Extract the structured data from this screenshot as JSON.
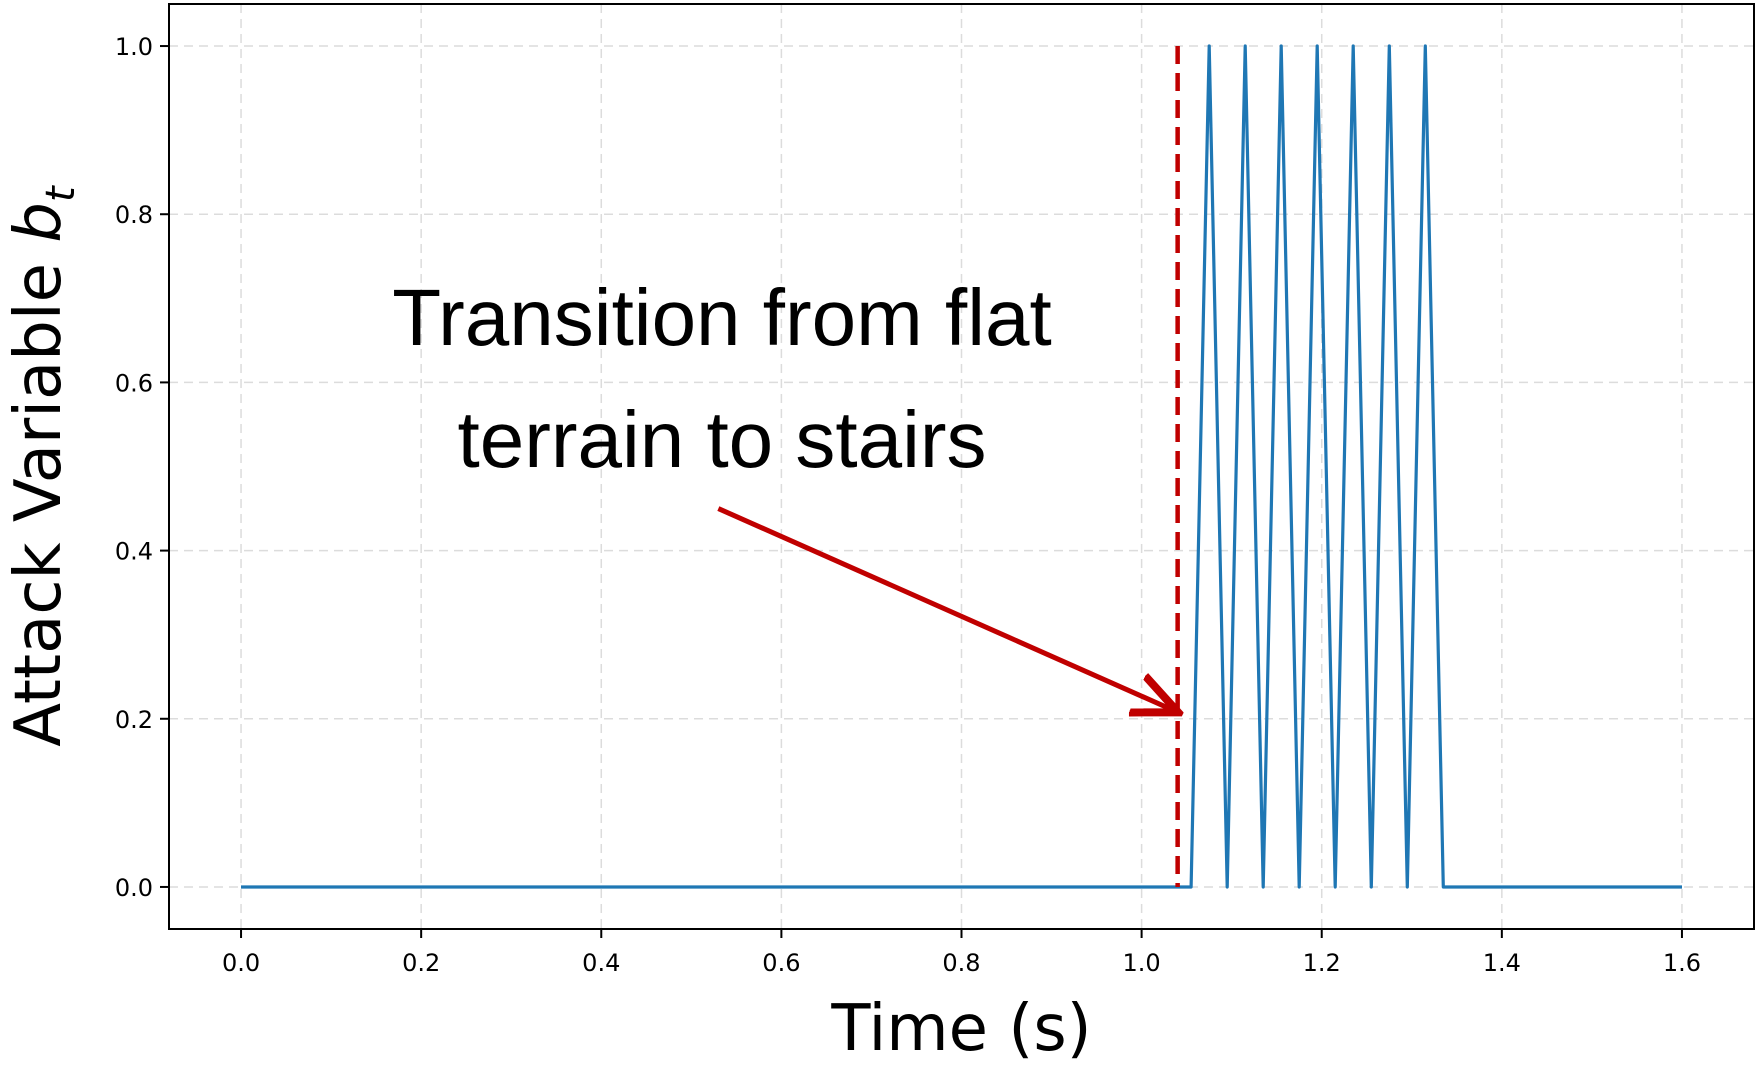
{
  "chart_data": {
    "type": "line",
    "title": "",
    "xlabel": "Time (s)",
    "ylabel_main": "Attack Variable ",
    "ylabel_math": "b",
    "ylabel_sub": "t",
    "xlim": [
      -0.08,
      1.68
    ],
    "ylim": [
      -0.05,
      1.05
    ],
    "xticks": [
      0.0,
      0.2,
      0.4,
      0.6,
      0.8,
      1.0,
      1.2,
      1.4,
      1.6
    ],
    "yticks": [
      0.0,
      0.2,
      0.4,
      0.6,
      0.8,
      1.0
    ],
    "xtick_labels": [
      "0.0",
      "0.2",
      "0.4",
      "0.6",
      "0.8",
      "1.0",
      "1.2",
      "1.4",
      "1.6"
    ],
    "ytick_labels": [
      "0.0",
      "0.2",
      "0.4",
      "0.6",
      "0.8",
      "1.0"
    ],
    "grid": true,
    "series": [
      {
        "color": "#1f77b4",
        "x": [
          0.0,
          1.055,
          1.075,
          1.095,
          1.115,
          1.135,
          1.155,
          1.175,
          1.195,
          1.215,
          1.235,
          1.255,
          1.275,
          1.295,
          1.315,
          1.335,
          1.6
        ],
        "y": [
          0,
          0,
          1,
          0,
          1,
          0,
          1,
          0,
          1,
          0,
          1,
          0,
          1,
          0,
          1,
          0,
          0
        ]
      }
    ],
    "vline": {
      "x": 1.04,
      "color": "#c00000",
      "style": "dashed"
    },
    "annotation": {
      "lines": [
        "Transition from flat",
        "terrain to stairs"
      ],
      "arrow_tail": [
        0.53,
        0.45
      ],
      "arrow_head": [
        1.04,
        0.21
      ],
      "arrow_color": "#c00000"
    }
  }
}
